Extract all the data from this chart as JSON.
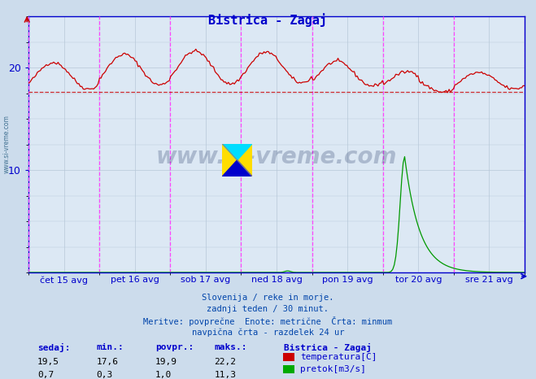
{
  "title": "Bistrica - Zagaj",
  "bg_color": "#ccdcec",
  "plot_bg_color": "#dce8f4",
  "grid_color": "#b8c8d8",
  "x_labels": [
    "čet 15 avg",
    "pet 16 avg",
    "sob 17 avg",
    "ned 18 avg",
    "pon 19 avg",
    "tor 20 avg",
    "sre 21 avg"
  ],
  "y_ticks": [
    10,
    20
  ],
  "y_min": 0,
  "y_max": 25,
  "dashed_line_y": 17.6,
  "info_lines": [
    "Slovenija / reke in morje.",
    "zadnji teden / 30 minut.",
    "Meritve: povprečne  Enote: metrične  Črta: minmum",
    "navpična črta - razdelek 24 ur"
  ],
  "table_headers": [
    "sedaj:",
    "min.:",
    "povpr.:",
    "maks.:"
  ],
  "table_row1": [
    "19,5",
    "17,6",
    "19,9",
    "22,2"
  ],
  "table_row2": [
    "0,7",
    "0,3",
    "1,0",
    "11,3"
  ],
  "legend_title": "Bistrica - Zagaj",
  "legend_items": [
    "temperatura[C]",
    "pretok[m3/s]"
  ],
  "legend_colors": [
    "#cc0000",
    "#00aa00"
  ],
  "temp_color": "#cc0000",
  "flow_color": "#009900",
  "vline_color": "#ff44ff",
  "axis_color": "#0000cc",
  "label_color": "#0000cc",
  "info_color": "#0044aa",
  "table_label_color": "#0000cc",
  "watermark_color": "#1a3060",
  "n_points": 336,
  "temp_min": 17.6,
  "temp_max": 22.2,
  "temp_avg": 19.9,
  "flow_max": 11.3
}
